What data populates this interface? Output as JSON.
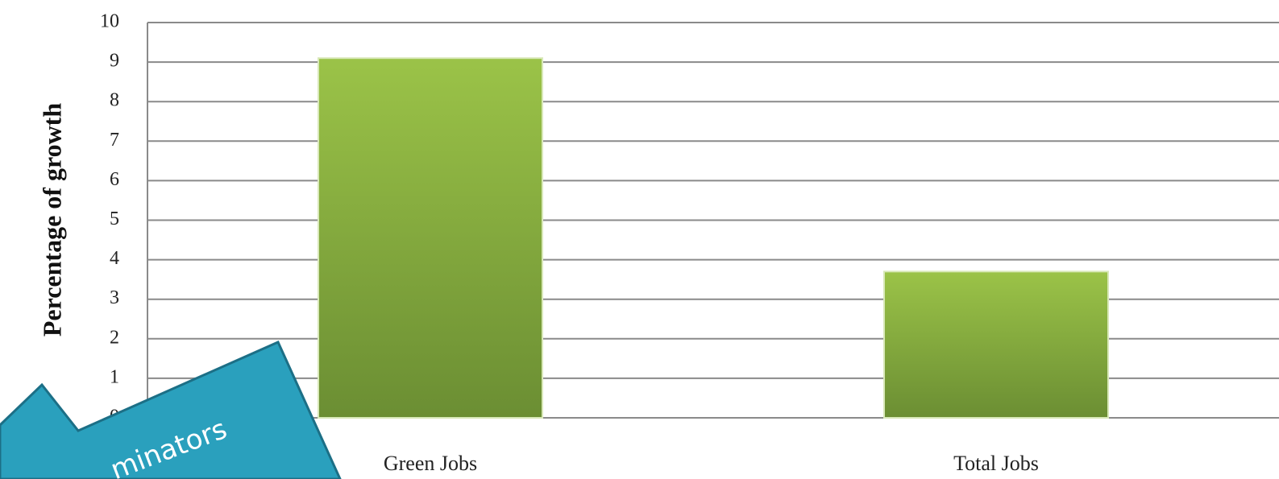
{
  "chart_data": {
    "type": "bar",
    "ylabel": "Percentage of growth",
    "categories": [
      "Green Jobs",
      "Total Jobs"
    ],
    "values": [
      9.1,
      3.7
    ],
    "color": "#9bc348",
    "ylim": [
      0,
      10
    ],
    "yticks": [
      0,
      1,
      2,
      3,
      4,
      5,
      6,
      7,
      8,
      9,
      10
    ],
    "grid": true,
    "annotation": "minators"
  }
}
